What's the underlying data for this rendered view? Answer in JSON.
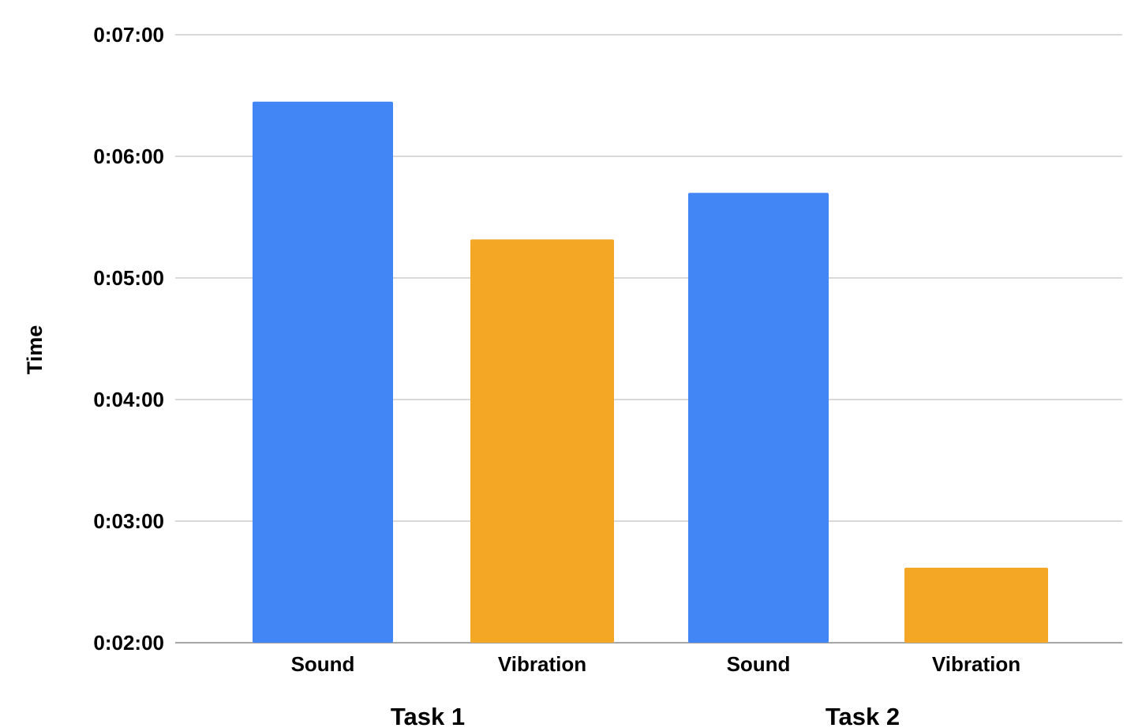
{
  "chart_data": {
    "type": "bar",
    "ylabel": "Time",
    "xlabel": "",
    "ylim_seconds": [
      120,
      420
    ],
    "y_ticks": [
      "0:02:00",
      "0:03:00",
      "0:04:00",
      "0:05:00",
      "0:06:00",
      "0:07:00"
    ],
    "y_tick_seconds": [
      120,
      180,
      240,
      300,
      360,
      420
    ],
    "groups": [
      {
        "label": "Task 1",
        "bars": [
          {
            "label": "Sound",
            "value": "0:06:27",
            "seconds": 387,
            "color": "#4285f4"
          },
          {
            "label": "Vibration",
            "value": "0:05:19",
            "seconds": 319,
            "color": "#f4a724"
          }
        ]
      },
      {
        "label": "Task 2",
        "bars": [
          {
            "label": "Sound",
            "value": "0:05:42",
            "seconds": 342,
            "color": "#4285f4"
          },
          {
            "label": "Vibration",
            "value": "0:02:37",
            "seconds": 157,
            "color": "#f4a724"
          }
        ]
      }
    ],
    "grid": true,
    "legend": "none"
  }
}
